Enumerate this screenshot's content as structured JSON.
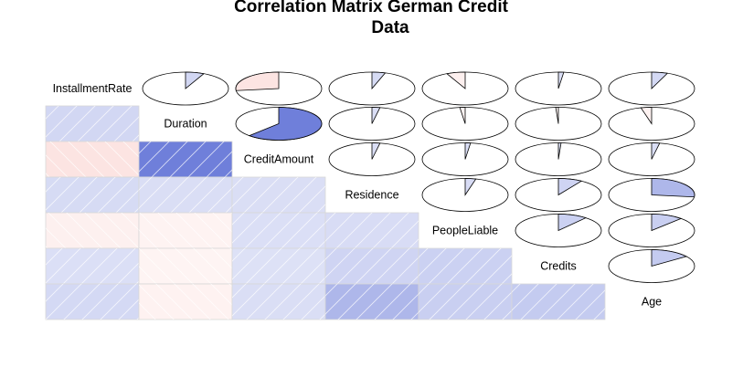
{
  "chart_data": {
    "type": "heatmap",
    "title_lines": [
      "Correlation Matrix German Credit",
      "Data"
    ],
    "variables": [
      "InstallmentRate",
      "Duration",
      "CreditAmount",
      "Residence",
      "PeopleLiable",
      "Credits",
      "Age"
    ],
    "correlation_matrix": [
      [
        1.0,
        0.07,
        -0.27,
        0.05,
        -0.07,
        0.02,
        0.06
      ],
      [
        0.07,
        1.0,
        0.62,
        0.03,
        -0.02,
        -0.01,
        -0.04
      ],
      [
        -0.27,
        0.62,
        1.0,
        0.03,
        0.02,
        0.01,
        0.03
      ],
      [
        0.05,
        0.03,
        0.03,
        1.0,
        0.04,
        0.09,
        0.27
      ],
      [
        -0.07,
        -0.02,
        0.02,
        0.04,
        1.0,
        0.11,
        0.12
      ],
      [
        0.02,
        -0.01,
        0.01,
        0.09,
        0.11,
        1.0,
        0.15
      ],
      [
        0.06,
        -0.04,
        0.03,
        0.27,
        0.12,
        0.15,
        1.0
      ]
    ],
    "lower_panel": "shade",
    "upper_panel": "pie",
    "diagonal_panel": "text",
    "positive_color": "#2A42C8",
    "negative_color": "#F7B7B3",
    "grid": false,
    "legend": "none"
  }
}
